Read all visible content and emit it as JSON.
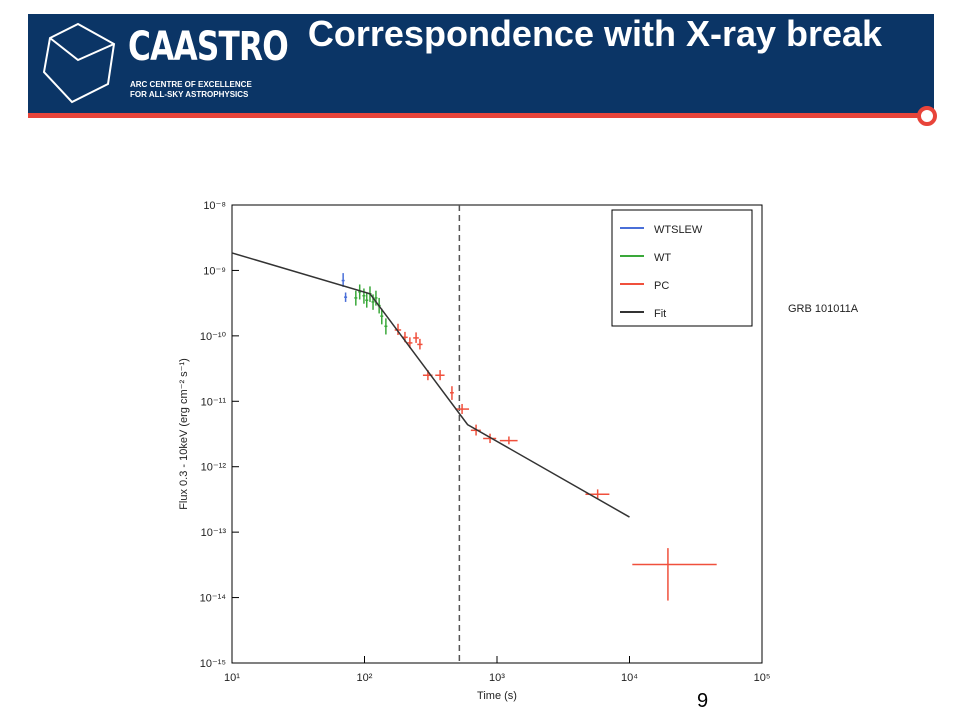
{
  "header": {
    "logo": "CAASTRO",
    "logo_subtitle": [
      "ARC CENTRE OF EXCELLENCE",
      "FOR ALL-SKY ASTROPHYSICS"
    ],
    "title": "Correspondence with X-ray break"
  },
  "slide_number": "9",
  "chart_data": {
    "type": "scatter",
    "xlabel": "Time (s)",
    "ylabel": "Flux 0.3 - 10keV (erg cm⁻² s⁻¹)",
    "annotation": "GRB 101011A",
    "log_x": true,
    "log_y": true,
    "legend": "upper right",
    "xlim": [
      10,
      100000
    ],
    "xticks": [
      {
        "value": 10,
        "label": "10¹"
      },
      {
        "value": 100,
        "label": "10²"
      },
      {
        "value": 1000,
        "label": "10³"
      },
      {
        "value": 10000,
        "label": "10⁴"
      },
      {
        "value": 100000,
        "label": "10⁵"
      }
    ],
    "ylim": [
      1e-15,
      1e-08
    ],
    "yticks": [
      {
        "value": 1e-15,
        "label": "10⁻¹⁵"
      },
      {
        "value": 1e-14,
        "label": "10⁻¹⁴"
      },
      {
        "value": 1e-13,
        "label": "10⁻¹³"
      },
      {
        "value": 1e-12,
        "label": "10⁻¹²"
      },
      {
        "value": 1e-11,
        "label": "10⁻¹¹"
      },
      {
        "value": 1e-10,
        "label": "10⁻¹⁰"
      },
      {
        "value": 1e-09,
        "label": "10⁻⁹"
      },
      {
        "value": 1e-08,
        "label": "10⁻⁸"
      }
    ],
    "vline": 520,
    "series": [
      {
        "name": "WTSLEW",
        "color": "#4a6fd8",
        "style": "errorbar",
        "x": [
          69,
          72
        ],
        "values": [
          7e-10,
          3.9e-10
        ],
        "yerr": [
          [
            1.4e-10,
            2.1e-10
          ],
          [
            6e-11,
            7e-11
          ]
        ]
      },
      {
        "name": "WT",
        "color": "#3aa83a",
        "style": "errorbar",
        "x": [
          86,
          92,
          99,
          104,
          110,
          116,
          122,
          129,
          135,
          145
        ],
        "values": [
          3.8e-10,
          4.7e-10,
          4.1e-10,
          3.5e-10,
          4.4e-10,
          3.3e-10,
          3.8e-10,
          2.9e-10,
          2e-10,
          1.4e-10
        ],
        "yerr": [
          [
            9e-11,
            1.1e-10
          ],
          [
            1.1e-10,
            1.4e-10
          ],
          [
            1e-10,
            1.2e-10
          ],
          [
            8e-11,
            1e-10
          ],
          [
            1.1e-10,
            1.3e-10
          ],
          [
            8e-11,
            1e-10
          ],
          [
            9e-11,
            1.1e-10
          ],
          [
            7e-11,
            9e-11
          ],
          [
            5e-11,
            6e-11
          ],
          [
            3.5e-11,
            4.5e-11
          ]
        ]
      },
      {
        "name": "PC",
        "color": "#f0503c",
        "style": "errorbar",
        "x": [
          179,
          202,
          220,
          245,
          262,
          301,
          372,
          457,
          545,
          695,
          886,
          1230,
          5750,
          19500
        ],
        "values": [
          1.23e-10,
          9.5e-11,
          7.8e-11,
          9.3e-11,
          7.4e-11,
          2.5e-11,
          2.5e-11,
          1.35e-11,
          7.6e-12,
          3.6e-12,
          2.7e-12,
          2.5e-12,
          3.8e-13,
          3.2e-14
        ],
        "xerr": [
          [
            10,
            10
          ],
          [
            10,
            10
          ],
          [
            10,
            10
          ],
          [
            12,
            12
          ],
          [
            12,
            12
          ],
          [
            25,
            25
          ],
          [
            30,
            30
          ],
          [
            15,
            15
          ],
          [
            60,
            70
          ],
          [
            60,
            60
          ],
          [
            100,
            100
          ],
          [
            180,
            200
          ],
          [
            1100,
            1300
          ],
          [
            9000,
            26000
          ]
        ],
        "yerr": [
          [
            2e-11,
            3e-11
          ],
          [
            1.5e-11,
            2e-11
          ],
          [
            1.3e-11,
            1.7e-11
          ],
          [
            1.5e-11,
            2e-11
          ],
          [
            1.2e-11,
            1.6e-11
          ],
          [
            4e-12,
            5e-12
          ],
          [
            4e-12,
            5e-12
          ],
          [
            3e-12,
            3.5e-12
          ],
          [
            1.2e-12,
            1.5e-12
          ],
          [
            6e-13,
            8e-13
          ],
          [
            4e-13,
            5e-13
          ],
          [
            3e-13,
            4e-13
          ],
          [
            6e-14,
            7e-14
          ],
          [
            2.3e-14,
            2.5e-14
          ]
        ]
      },
      {
        "name": "Fit",
        "color": "#333333",
        "style": "line",
        "x": [
          10,
          110,
          600,
          10000
        ],
        "values": [
          1.85e-09,
          4.4e-10,
          4.4e-12,
          1.7e-13
        ]
      }
    ]
  }
}
